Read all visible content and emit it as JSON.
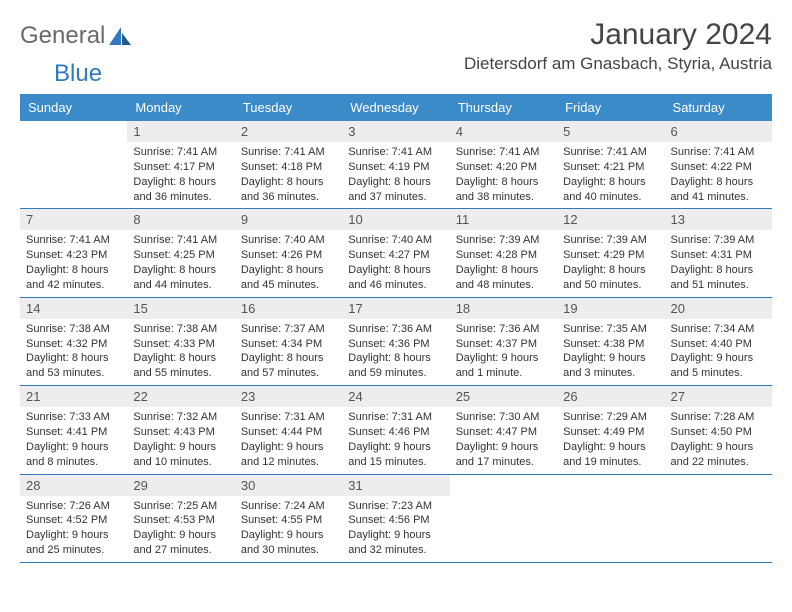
{
  "logo": {
    "part1": "General",
    "part2": "Blue"
  },
  "title": {
    "month": "January 2024",
    "location": "Dietersdorf am Gnasbach, Styria, Austria"
  },
  "colors": {
    "header_bg": "#3b8bc9",
    "header_text": "#ffffff",
    "daynum_bg": "#ededed",
    "border": "#2f7ac0",
    "logo_accent": "#2f7ac0"
  },
  "weekdays": [
    "Sunday",
    "Monday",
    "Tuesday",
    "Wednesday",
    "Thursday",
    "Friday",
    "Saturday"
  ],
  "leading_blanks": 1,
  "days": [
    {
      "n": "1",
      "sunrise": "7:41 AM",
      "sunset": "4:17 PM",
      "daylight": "8 hours and 36 minutes."
    },
    {
      "n": "2",
      "sunrise": "7:41 AM",
      "sunset": "4:18 PM",
      "daylight": "8 hours and 36 minutes."
    },
    {
      "n": "3",
      "sunrise": "7:41 AM",
      "sunset": "4:19 PM",
      "daylight": "8 hours and 37 minutes."
    },
    {
      "n": "4",
      "sunrise": "7:41 AM",
      "sunset": "4:20 PM",
      "daylight": "8 hours and 38 minutes."
    },
    {
      "n": "5",
      "sunrise": "7:41 AM",
      "sunset": "4:21 PM",
      "daylight": "8 hours and 40 minutes."
    },
    {
      "n": "6",
      "sunrise": "7:41 AM",
      "sunset": "4:22 PM",
      "daylight": "8 hours and 41 minutes."
    },
    {
      "n": "7",
      "sunrise": "7:41 AM",
      "sunset": "4:23 PM",
      "daylight": "8 hours and 42 minutes."
    },
    {
      "n": "8",
      "sunrise": "7:41 AM",
      "sunset": "4:25 PM",
      "daylight": "8 hours and 44 minutes."
    },
    {
      "n": "9",
      "sunrise": "7:40 AM",
      "sunset": "4:26 PM",
      "daylight": "8 hours and 45 minutes."
    },
    {
      "n": "10",
      "sunrise": "7:40 AM",
      "sunset": "4:27 PM",
      "daylight": "8 hours and 46 minutes."
    },
    {
      "n": "11",
      "sunrise": "7:39 AM",
      "sunset": "4:28 PM",
      "daylight": "8 hours and 48 minutes."
    },
    {
      "n": "12",
      "sunrise": "7:39 AM",
      "sunset": "4:29 PM",
      "daylight": "8 hours and 50 minutes."
    },
    {
      "n": "13",
      "sunrise": "7:39 AM",
      "sunset": "4:31 PM",
      "daylight": "8 hours and 51 minutes."
    },
    {
      "n": "14",
      "sunrise": "7:38 AM",
      "sunset": "4:32 PM",
      "daylight": "8 hours and 53 minutes."
    },
    {
      "n": "15",
      "sunrise": "7:38 AM",
      "sunset": "4:33 PM",
      "daylight": "8 hours and 55 minutes."
    },
    {
      "n": "16",
      "sunrise": "7:37 AM",
      "sunset": "4:34 PM",
      "daylight": "8 hours and 57 minutes."
    },
    {
      "n": "17",
      "sunrise": "7:36 AM",
      "sunset": "4:36 PM",
      "daylight": "8 hours and 59 minutes."
    },
    {
      "n": "18",
      "sunrise": "7:36 AM",
      "sunset": "4:37 PM",
      "daylight": "9 hours and 1 minute."
    },
    {
      "n": "19",
      "sunrise": "7:35 AM",
      "sunset": "4:38 PM",
      "daylight": "9 hours and 3 minutes."
    },
    {
      "n": "20",
      "sunrise": "7:34 AM",
      "sunset": "4:40 PM",
      "daylight": "9 hours and 5 minutes."
    },
    {
      "n": "21",
      "sunrise": "7:33 AM",
      "sunset": "4:41 PM",
      "daylight": "9 hours and 8 minutes."
    },
    {
      "n": "22",
      "sunrise": "7:32 AM",
      "sunset": "4:43 PM",
      "daylight": "9 hours and 10 minutes."
    },
    {
      "n": "23",
      "sunrise": "7:31 AM",
      "sunset": "4:44 PM",
      "daylight": "9 hours and 12 minutes."
    },
    {
      "n": "24",
      "sunrise": "7:31 AM",
      "sunset": "4:46 PM",
      "daylight": "9 hours and 15 minutes."
    },
    {
      "n": "25",
      "sunrise": "7:30 AM",
      "sunset": "4:47 PM",
      "daylight": "9 hours and 17 minutes."
    },
    {
      "n": "26",
      "sunrise": "7:29 AM",
      "sunset": "4:49 PM",
      "daylight": "9 hours and 19 minutes."
    },
    {
      "n": "27",
      "sunrise": "7:28 AM",
      "sunset": "4:50 PM",
      "daylight": "9 hours and 22 minutes."
    },
    {
      "n": "28",
      "sunrise": "7:26 AM",
      "sunset": "4:52 PM",
      "daylight": "9 hours and 25 minutes."
    },
    {
      "n": "29",
      "sunrise": "7:25 AM",
      "sunset": "4:53 PM",
      "daylight": "9 hours and 27 minutes."
    },
    {
      "n": "30",
      "sunrise": "7:24 AM",
      "sunset": "4:55 PM",
      "daylight": "9 hours and 30 minutes."
    },
    {
      "n": "31",
      "sunrise": "7:23 AM",
      "sunset": "4:56 PM",
      "daylight": "9 hours and 32 minutes."
    }
  ],
  "labels": {
    "sunrise": "Sunrise:",
    "sunset": "Sunset:",
    "daylight": "Daylight:"
  }
}
